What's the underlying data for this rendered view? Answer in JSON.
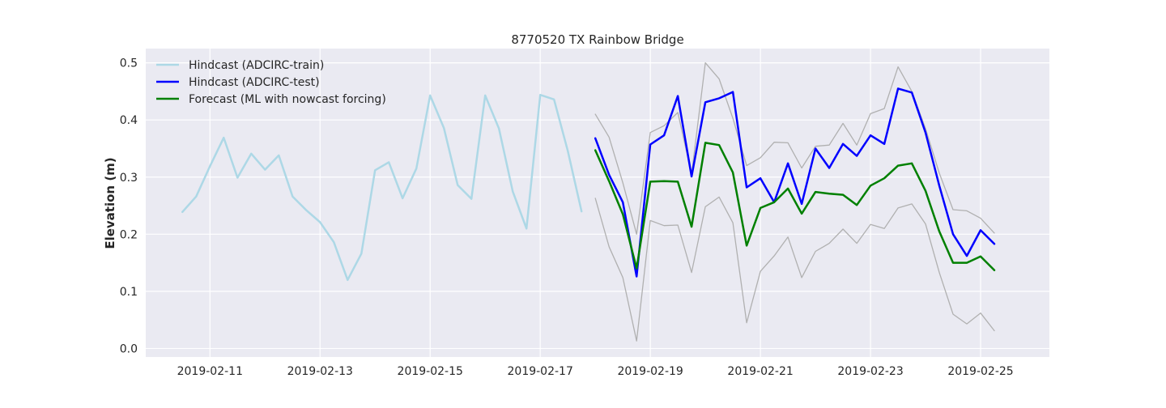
{
  "chart_data": {
    "type": "line",
    "title": "8770520 TX Rainbow Bridge",
    "xlabel": "",
    "ylabel": "Elevation (m)",
    "x_axis_type": "date",
    "xlim": [
      "2019-02-09 20:00",
      "2019-02-26 06:00"
    ],
    "ylim": [
      -0.015,
      0.525
    ],
    "x_ticks": [
      "2019-02-11",
      "2019-02-13",
      "2019-02-15",
      "2019-02-17",
      "2019-02-19",
      "2019-02-21",
      "2019-02-23",
      "2019-02-25"
    ],
    "y_ticks": [
      0.0,
      0.1,
      0.2,
      0.3,
      0.4,
      0.5
    ],
    "y_tick_labels": [
      "0.0",
      "0.1",
      "0.2",
      "0.3",
      "0.4",
      "0.5"
    ],
    "grid": true,
    "legend_position": "top-left",
    "series": [
      {
        "name": "Hindcast (ADCIRC-train)",
        "color": "#add8e6",
        "in_legend": true,
        "x": [
          "2019-02-10 12:00",
          "2019-02-10 18:00",
          "2019-02-11 00:00",
          "2019-02-11 06:00",
          "2019-02-11 12:00",
          "2019-02-11 18:00",
          "2019-02-12 00:00",
          "2019-02-12 06:00",
          "2019-02-12 12:00",
          "2019-02-12 18:00",
          "2019-02-13 00:00",
          "2019-02-13 06:00",
          "2019-02-13 12:00",
          "2019-02-13 18:00",
          "2019-02-14 00:00",
          "2019-02-14 06:00",
          "2019-02-14 12:00",
          "2019-02-14 18:00",
          "2019-02-15 00:00",
          "2019-02-15 06:00",
          "2019-02-15 12:00",
          "2019-02-15 18:00",
          "2019-02-16 00:00",
          "2019-02-16 06:00",
          "2019-02-16 12:00",
          "2019-02-16 18:00",
          "2019-02-17 00:00",
          "2019-02-17 06:00",
          "2019-02-17 12:00",
          "2019-02-17 18:00"
        ],
        "y": [
          0.239,
          0.266,
          0.319,
          0.369,
          0.299,
          0.341,
          0.313,
          0.338,
          0.266,
          0.242,
          0.221,
          0.186,
          0.12,
          0.166,
          0.312,
          0.326,
          0.263,
          0.315,
          0.443,
          0.386,
          0.286,
          0.262,
          0.443,
          0.385,
          0.275,
          0.21,
          0.444,
          0.436,
          0.346,
          0.24
        ]
      },
      {
        "name": "",
        "color": "#b0b0b0",
        "in_legend": false,
        "x": [
          "2019-02-18 00:00",
          "2019-02-18 06:00",
          "2019-02-18 12:00",
          "2019-02-18 18:00",
          "2019-02-19 00:00",
          "2019-02-19 06:00",
          "2019-02-19 12:00",
          "2019-02-19 18:00",
          "2019-02-20 00:00",
          "2019-02-20 06:00",
          "2019-02-20 12:00",
          "2019-02-20 18:00",
          "2019-02-21 00:00",
          "2019-02-21 06:00",
          "2019-02-21 12:00",
          "2019-02-21 18:00",
          "2019-02-22 00:00",
          "2019-02-22 06:00",
          "2019-02-22 12:00",
          "2019-02-22 18:00",
          "2019-02-23 00:00",
          "2019-02-23 06:00",
          "2019-02-23 12:00",
          "2019-02-23 18:00",
          "2019-02-24 00:00",
          "2019-02-24 06:00",
          "2019-02-24 12:00",
          "2019-02-24 18:00",
          "2019-02-25 00:00",
          "2019-02-25 06:00"
        ],
        "y": [
          0.41,
          0.37,
          0.29,
          0.2,
          0.378,
          0.39,
          0.413,
          0.305,
          0.5,
          0.472,
          0.403,
          0.32,
          0.334,
          0.361,
          0.36,
          0.316,
          0.354,
          0.356,
          0.394,
          0.356,
          0.411,
          0.42,
          0.493,
          0.45,
          0.385,
          0.307,
          0.243,
          0.241,
          0.228,
          0.202
        ]
      },
      {
        "name": "",
        "color": "#b0b0b0",
        "in_legend": false,
        "x": [
          "2019-02-18 00:00",
          "2019-02-18 06:00",
          "2019-02-18 12:00",
          "2019-02-18 18:00",
          "2019-02-19 00:00",
          "2019-02-19 06:00",
          "2019-02-19 12:00",
          "2019-02-19 18:00",
          "2019-02-20 00:00",
          "2019-02-20 06:00",
          "2019-02-20 12:00",
          "2019-02-20 18:00",
          "2019-02-21 00:00",
          "2019-02-21 06:00",
          "2019-02-21 12:00",
          "2019-02-21 18:00",
          "2019-02-22 00:00",
          "2019-02-22 06:00",
          "2019-02-22 12:00",
          "2019-02-22 18:00",
          "2019-02-23 00:00",
          "2019-02-23 06:00",
          "2019-02-23 12:00",
          "2019-02-23 18:00",
          "2019-02-24 00:00",
          "2019-02-24 06:00",
          "2019-02-24 12:00",
          "2019-02-24 18:00",
          "2019-02-25 00:00",
          "2019-02-25 06:00"
        ],
        "y": [
          0.263,
          0.178,
          0.124,
          0.013,
          0.224,
          0.215,
          0.216,
          0.133,
          0.248,
          0.265,
          0.22,
          0.045,
          0.135,
          0.162,
          0.195,
          0.124,
          0.17,
          0.184,
          0.209,
          0.184,
          0.217,
          0.21,
          0.246,
          0.253,
          0.218,
          0.133,
          0.06,
          0.043,
          0.062,
          0.031
        ]
      },
      {
        "name": "Hindcast (ADCIRC-test)",
        "color": "#0000ff",
        "in_legend": true,
        "x": [
          "2019-02-18 00:00",
          "2019-02-18 06:00",
          "2019-02-18 12:00",
          "2019-02-18 18:00",
          "2019-02-19 00:00",
          "2019-02-19 06:00",
          "2019-02-19 12:00",
          "2019-02-19 18:00",
          "2019-02-20 00:00",
          "2019-02-20 06:00",
          "2019-02-20 12:00",
          "2019-02-20 18:00",
          "2019-02-21 00:00",
          "2019-02-21 06:00",
          "2019-02-21 12:00",
          "2019-02-21 18:00",
          "2019-02-22 00:00",
          "2019-02-22 06:00",
          "2019-02-22 12:00",
          "2019-02-22 18:00",
          "2019-02-23 00:00",
          "2019-02-23 06:00",
          "2019-02-23 12:00",
          "2019-02-23 18:00",
          "2019-02-24 00:00",
          "2019-02-24 06:00",
          "2019-02-24 12:00",
          "2019-02-24 18:00",
          "2019-02-25 00:00",
          "2019-02-25 06:00"
        ],
        "y": [
          0.368,
          0.304,
          0.256,
          0.126,
          0.357,
          0.373,
          0.442,
          0.301,
          0.431,
          0.438,
          0.449,
          0.282,
          0.298,
          0.256,
          0.324,
          0.253,
          0.35,
          0.316,
          0.358,
          0.337,
          0.373,
          0.358,
          0.455,
          0.448,
          0.378,
          0.285,
          0.2,
          0.162,
          0.207,
          0.183
        ]
      },
      {
        "name": "Forecast (ML with nowcast forcing)",
        "color": "#008000",
        "in_legend": true,
        "x": [
          "2019-02-18 00:00",
          "2019-02-18 06:00",
          "2019-02-18 12:00",
          "2019-02-18 18:00",
          "2019-02-19 00:00",
          "2019-02-19 06:00",
          "2019-02-19 12:00",
          "2019-02-19 18:00",
          "2019-02-20 00:00",
          "2019-02-20 06:00",
          "2019-02-20 12:00",
          "2019-02-20 18:00",
          "2019-02-21 00:00",
          "2019-02-21 06:00",
          "2019-02-21 12:00",
          "2019-02-21 18:00",
          "2019-02-22 00:00",
          "2019-02-22 06:00",
          "2019-02-22 12:00",
          "2019-02-22 18:00",
          "2019-02-23 00:00",
          "2019-02-23 06:00",
          "2019-02-23 12:00",
          "2019-02-23 18:00",
          "2019-02-24 00:00",
          "2019-02-24 06:00",
          "2019-02-24 12:00",
          "2019-02-24 18:00",
          "2019-02-25 00:00",
          "2019-02-25 06:00"
        ],
        "y": [
          0.347,
          0.293,
          0.235,
          0.14,
          0.292,
          0.293,
          0.292,
          0.213,
          0.36,
          0.356,
          0.308,
          0.18,
          0.246,
          0.256,
          0.28,
          0.236,
          0.274,
          0.271,
          0.269,
          0.251,
          0.285,
          0.298,
          0.32,
          0.324,
          0.276,
          0.205,
          0.15,
          0.15,
          0.161,
          0.137
        ]
      }
    ]
  }
}
